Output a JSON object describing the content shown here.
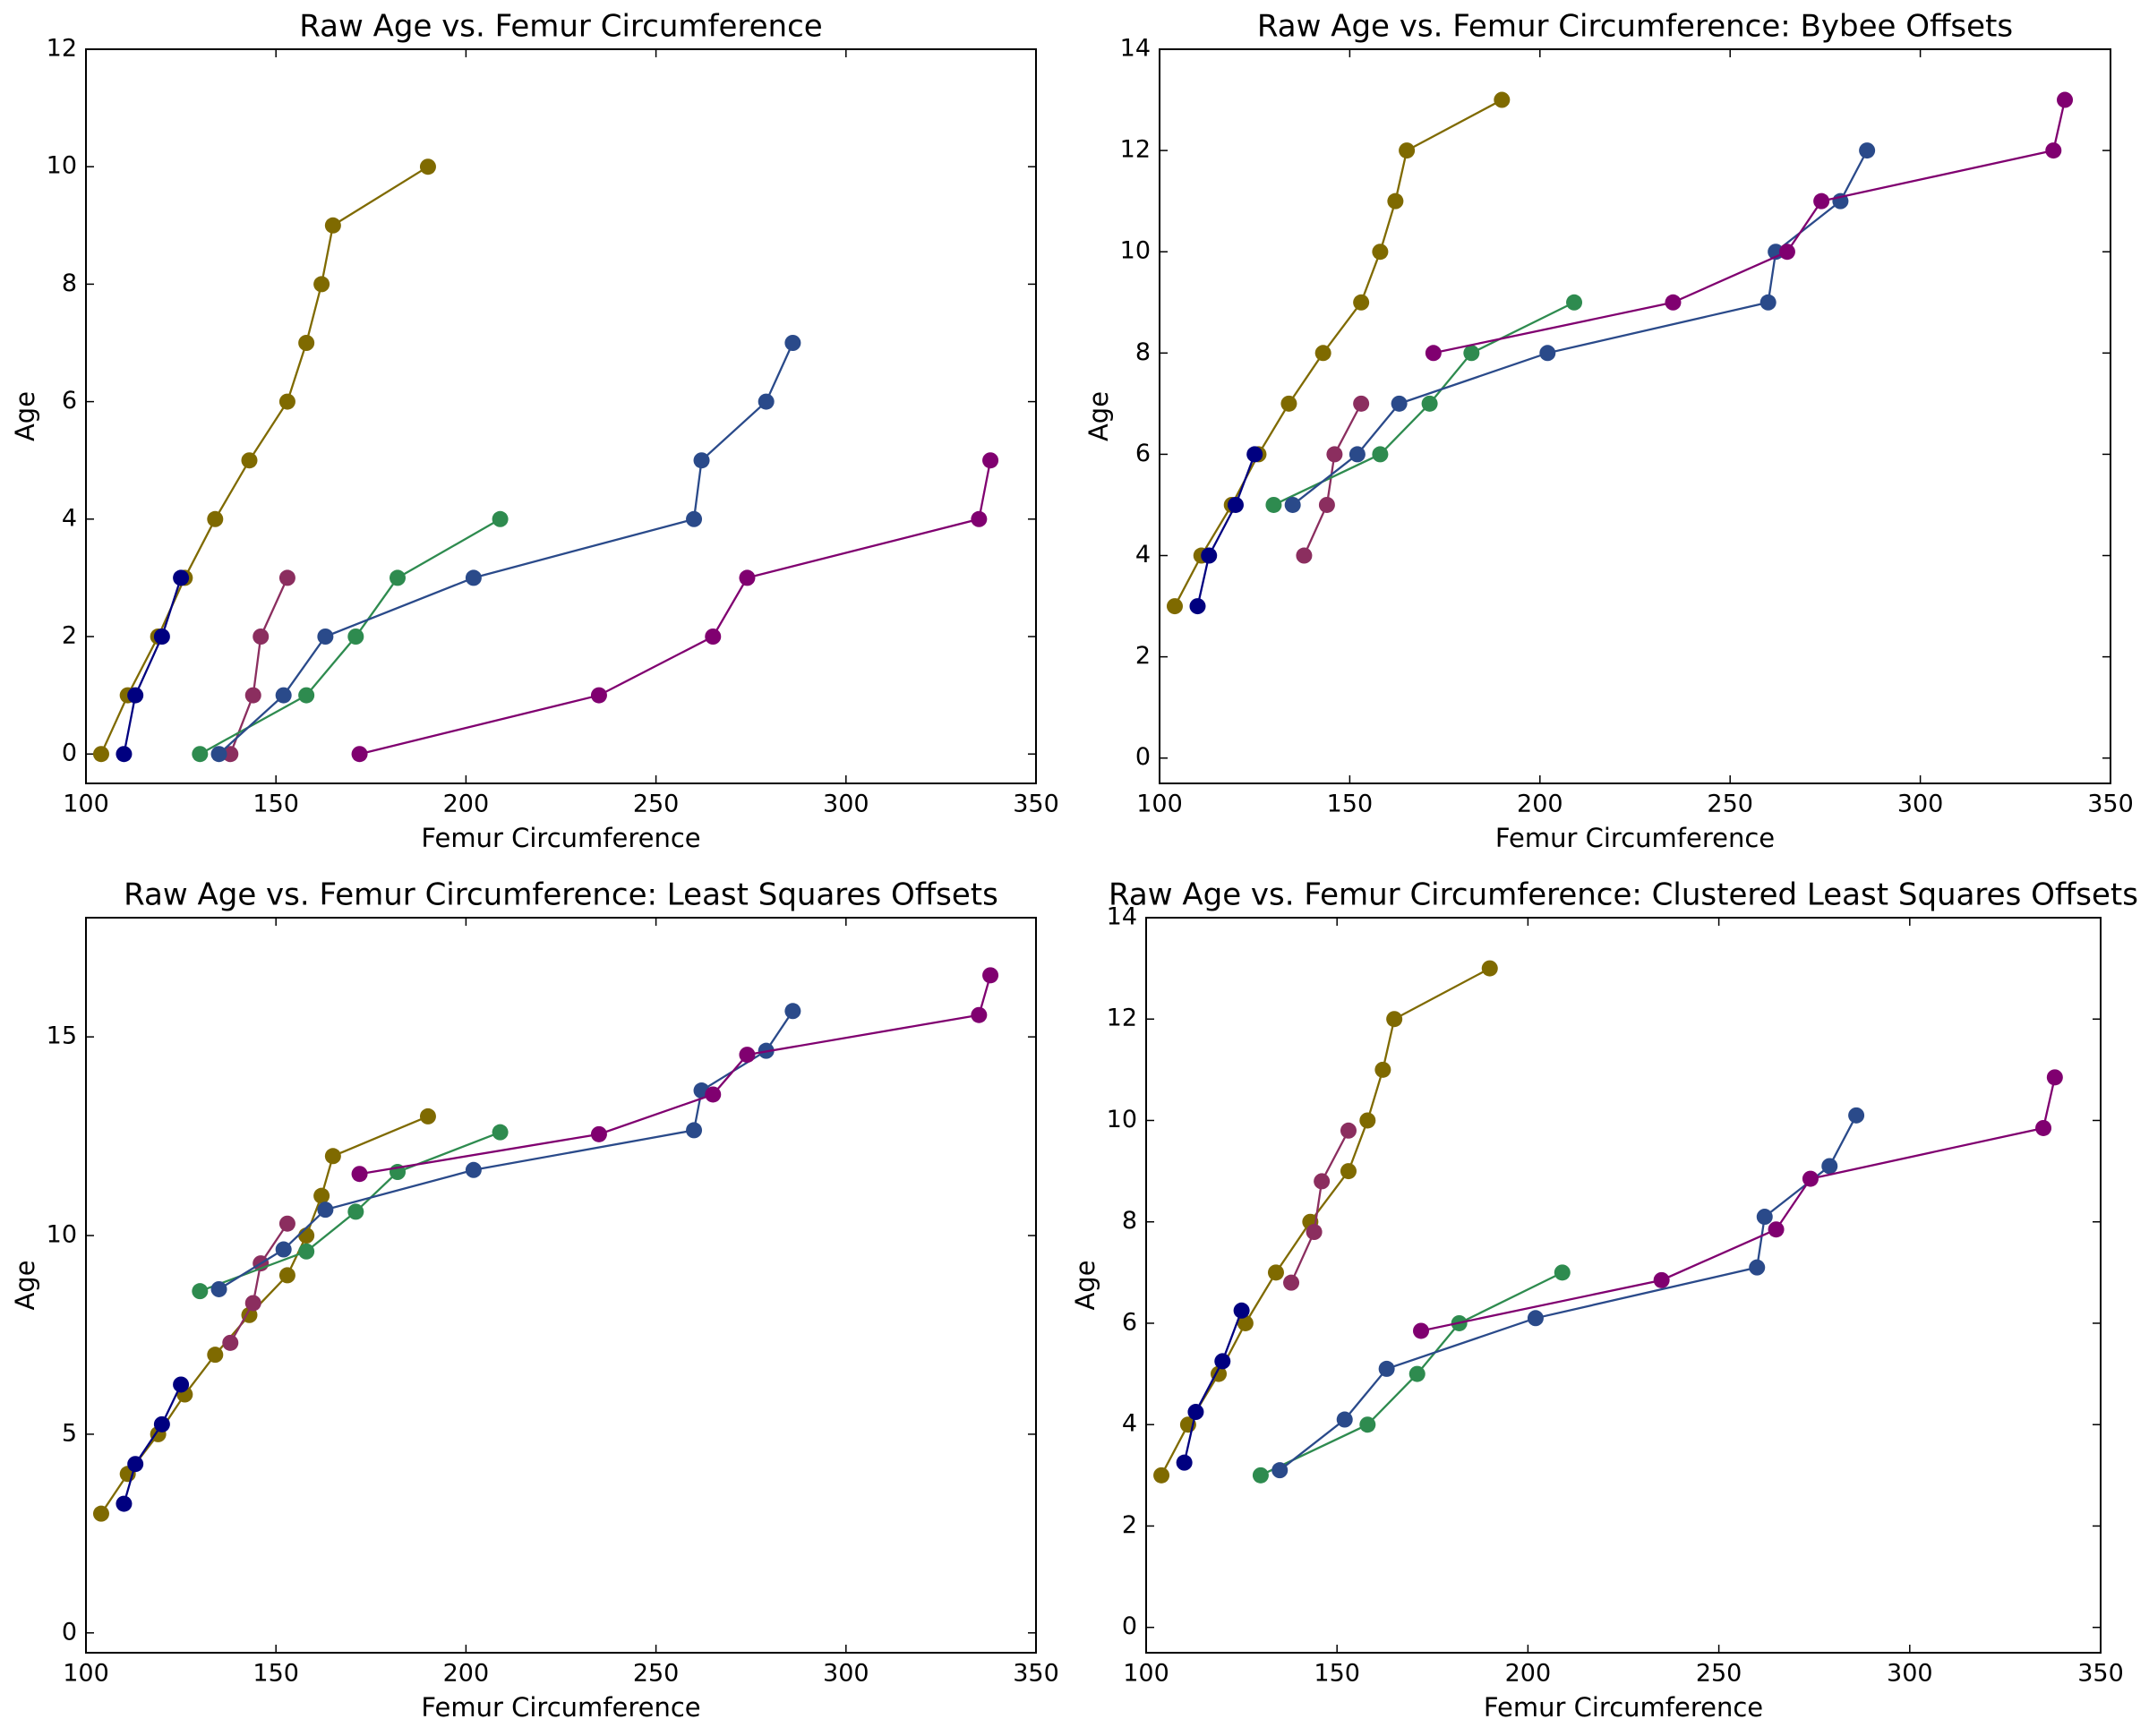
{
  "chart_data": [
    {
      "type": "line",
      "title": "Raw Age vs. Femur Circumference",
      "xlabel": "Femur Circumference",
      "ylabel": "Age",
      "xlim": [
        100,
        350
      ],
      "xticks": [
        100,
        150,
        200,
        250,
        300,
        350
      ],
      "ylim": [
        -0.5,
        12
      ],
      "yticks": [
        0,
        2,
        4,
        6,
        8,
        10,
        12
      ],
      "series": [
        {
          "color": "#7f6a00",
          "x": [
            104,
            111,
            119,
            126,
            134,
            143,
            153,
            158,
            162,
            165,
            190
          ],
          "values": [
            0,
            1,
            2,
            3,
            4,
            5,
            6,
            7,
            8,
            9,
            10
          ]
        },
        {
          "color": "#000080",
          "x": [
            110,
            113,
            120,
            125
          ],
          "values": [
            0,
            1,
            2,
            3
          ]
        },
        {
          "color": "#8b2e5f",
          "x": [
            138,
            144,
            146,
            153
          ],
          "values": [
            0,
            1,
            2,
            3
          ]
        },
        {
          "color": "#2e8b4f",
          "x": [
            130,
            158,
            171,
            182,
            209
          ],
          "values": [
            0,
            1,
            2,
            3,
            4
          ]
        },
        {
          "color": "#2a4a8a",
          "x": [
            135,
            152,
            163,
            202,
            260,
            262,
            279,
            286
          ],
          "values": [
            0,
            1,
            2,
            3,
            4,
            5,
            6,
            7
          ]
        },
        {
          "color": "#800070",
          "x": [
            172,
            235,
            265,
            274,
            335,
            338
          ],
          "values": [
            0,
            1,
            2,
            3,
            4,
            5
          ]
        }
      ]
    },
    {
      "type": "line",
      "title": "Raw Age vs. Femur Circumference: Bybee Offsets",
      "xlabel": "Femur Circumference",
      "ylabel": "Age",
      "xlim": [
        100,
        350
      ],
      "xticks": [
        100,
        150,
        200,
        250,
        300,
        350
      ],
      "ylim": [
        -0.5,
        14
      ],
      "yticks": [
        0,
        2,
        4,
        6,
        8,
        10,
        12,
        14
      ],
      "series": [
        {
          "color": "#7f6a00",
          "x": [
            104,
            111,
            119,
            126,
            134,
            143,
            153,
            158,
            162,
            165,
            190
          ],
          "values": [
            3,
            4,
            5,
            6,
            7,
            8,
            9,
            10,
            11,
            12,
            13
          ]
        },
        {
          "color": "#000080",
          "x": [
            110,
            113,
            120,
            125
          ],
          "values": [
            3,
            4,
            5,
            6
          ]
        },
        {
          "color": "#8b2e5f",
          "x": [
            138,
            144,
            146,
            153
          ],
          "values": [
            4,
            5,
            6,
            7
          ]
        },
        {
          "color": "#2e8b4f",
          "x": [
            130,
            158,
            171,
            182,
            209
          ],
          "values": [
            5,
            6,
            7,
            8,
            9
          ]
        },
        {
          "color": "#2a4a8a",
          "x": [
            135,
            152,
            163,
            202,
            260,
            262,
            279,
            286
          ],
          "values": [
            5,
            6,
            7,
            8,
            9,
            10,
            11,
            12
          ]
        },
        {
          "color": "#800070",
          "x": [
            172,
            235,
            265,
            274,
            335,
            338
          ],
          "values": [
            8,
            9,
            10,
            11,
            12,
            13
          ]
        }
      ]
    },
    {
      "type": "line",
      "title": "Raw Age vs. Femur Circumference: Least Squares Offsets",
      "xlabel": "Femur Circumference",
      "ylabel": "Age",
      "xlim": [
        100,
        350
      ],
      "xticks": [
        100,
        150,
        200,
        250,
        300,
        350
      ],
      "ylim": [
        -0.5,
        18
      ],
      "yticks": [
        0,
        5,
        10,
        15
      ],
      "series": [
        {
          "color": "#7f6a00",
          "x": [
            104,
            111,
            119,
            126,
            134,
            143,
            153,
            158,
            162,
            165,
            190
          ],
          "values": [
            3,
            4,
            5,
            6,
            7,
            8,
            9,
            10,
            11,
            12,
            13
          ]
        },
        {
          "color": "#000080",
          "x": [
            110,
            113,
            120,
            125
          ],
          "values": [
            3.25,
            4.25,
            5.25,
            6.25
          ]
        },
        {
          "color": "#8b2e5f",
          "x": [
            138,
            144,
            146,
            153
          ],
          "values": [
            7.3,
            8.3,
            9.3,
            10.3
          ]
        },
        {
          "color": "#2e8b4f",
          "x": [
            130,
            158,
            171,
            182,
            209
          ],
          "values": [
            8.6,
            9.6,
            10.6,
            11.6,
            12.6
          ]
        },
        {
          "color": "#2a4a8a",
          "x": [
            135,
            152,
            163,
            202,
            260,
            262,
            279,
            286
          ],
          "values": [
            8.65,
            9.65,
            10.65,
            11.65,
            12.65,
            13.65,
            14.65,
            15.65
          ]
        },
        {
          "color": "#800070",
          "x": [
            172,
            235,
            265,
            274,
            335,
            338
          ],
          "values": [
            11.55,
            12.55,
            13.55,
            14.55,
            15.55,
            16.55
          ]
        }
      ]
    },
    {
      "type": "line",
      "title": "Raw Age vs. Femur Circumference: Clustered Least Squares Offsets",
      "xlabel": "Femur Circumference",
      "ylabel": "Age",
      "xlim": [
        100,
        350
      ],
      "xticks": [
        100,
        150,
        200,
        250,
        300,
        350
      ],
      "ylim": [
        -0.5,
        14
      ],
      "yticks": [
        0,
        2,
        4,
        6,
        8,
        10,
        12,
        14
      ],
      "series": [
        {
          "color": "#7f6a00",
          "x": [
            104,
            111,
            119,
            126,
            134,
            143,
            153,
            158,
            162,
            165,
            190
          ],
          "values": [
            3,
            4,
            5,
            6,
            7,
            8,
            9,
            10,
            11,
            12,
            13
          ]
        },
        {
          "color": "#000080",
          "x": [
            110,
            113,
            120,
            125
          ],
          "values": [
            3.25,
            4.25,
            5.25,
            6.25
          ]
        },
        {
          "color": "#8b2e5f",
          "x": [
            138,
            144,
            146,
            153
          ],
          "values": [
            6.8,
            7.8,
            8.8,
            9.8
          ]
        },
        {
          "color": "#2e8b4f",
          "x": [
            130,
            158,
            171,
            182,
            209
          ],
          "values": [
            3,
            4,
            5,
            6,
            7
          ]
        },
        {
          "color": "#2a4a8a",
          "x": [
            135,
            152,
            163,
            202,
            260,
            262,
            279,
            286
          ],
          "values": [
            3.1,
            4.1,
            5.1,
            6.1,
            7.1,
            8.1,
            9.1,
            10.1
          ]
        },
        {
          "color": "#800070",
          "x": [
            172,
            235,
            265,
            274,
            335,
            338
          ],
          "values": [
            5.85,
            6.85,
            7.85,
            8.85,
            9.85,
            10.85
          ]
        }
      ]
    }
  ]
}
